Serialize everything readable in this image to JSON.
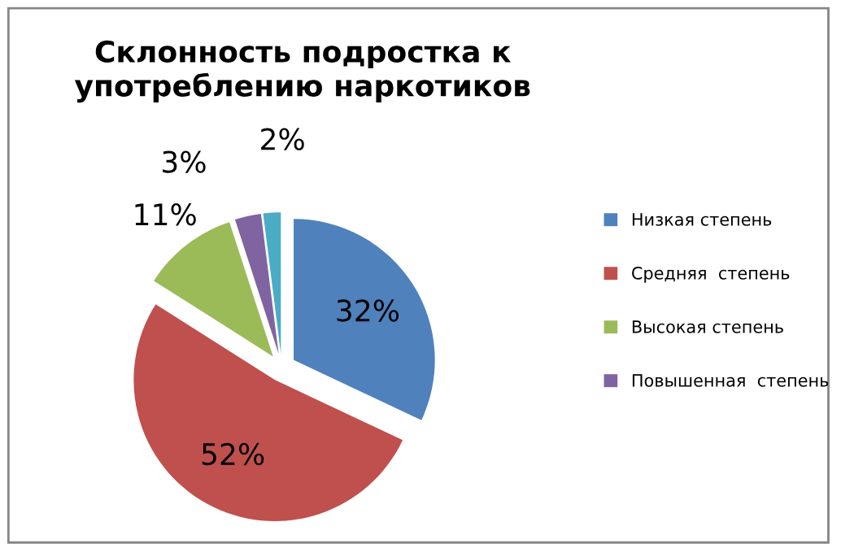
{
  "chart_data": {
    "type": "pie",
    "title": "Склонность подростка к\nупотреблению наркотиков",
    "categories": [
      "Низкая степень",
      "Средняя  степень",
      "Высокая степень",
      "Повышенная  степень",
      null
    ],
    "values": [
      32,
      52,
      11,
      3,
      2
    ],
    "colors": [
      "#4f81bd",
      "#c0504d",
      "#9bbb59",
      "#8064a2",
      "#4bacc6"
    ],
    "value_labels": [
      "32%",
      "52%",
      "11%",
      "3%",
      "2%"
    ],
    "legend": "right"
  }
}
